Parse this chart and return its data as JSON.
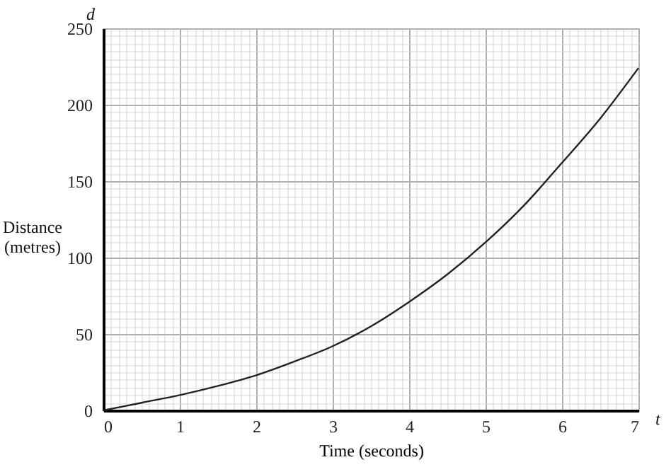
{
  "chart_data": {
    "type": "line",
    "xlabel": "Time (seconds)",
    "ylabel": "Distance (metres)",
    "annotations": [
      "d",
      "t"
    ],
    "x": [
      0,
      0.5,
      1,
      1.5,
      2,
      2.5,
      3,
      3.5,
      4,
      4.5,
      5,
      5.5,
      6,
      6.5,
      7
    ],
    "series": [
      {
        "color": "#222222",
        "values": [
          0,
          5,
          10,
          16,
          23,
          32,
          42,
          55,
          71,
          89,
          110,
          134,
          162,
          191,
          224
        ]
      }
    ],
    "xlim": [
      0,
      7
    ],
    "xticks": [
      0,
      1,
      2,
      3,
      4,
      5,
      6,
      7
    ],
    "ylim": [
      0,
      250
    ],
    "yticks": [
      0,
      50,
      100,
      150,
      200,
      250
    ],
    "grid": true,
    "marker": "none",
    "line_style": "solid"
  }
}
